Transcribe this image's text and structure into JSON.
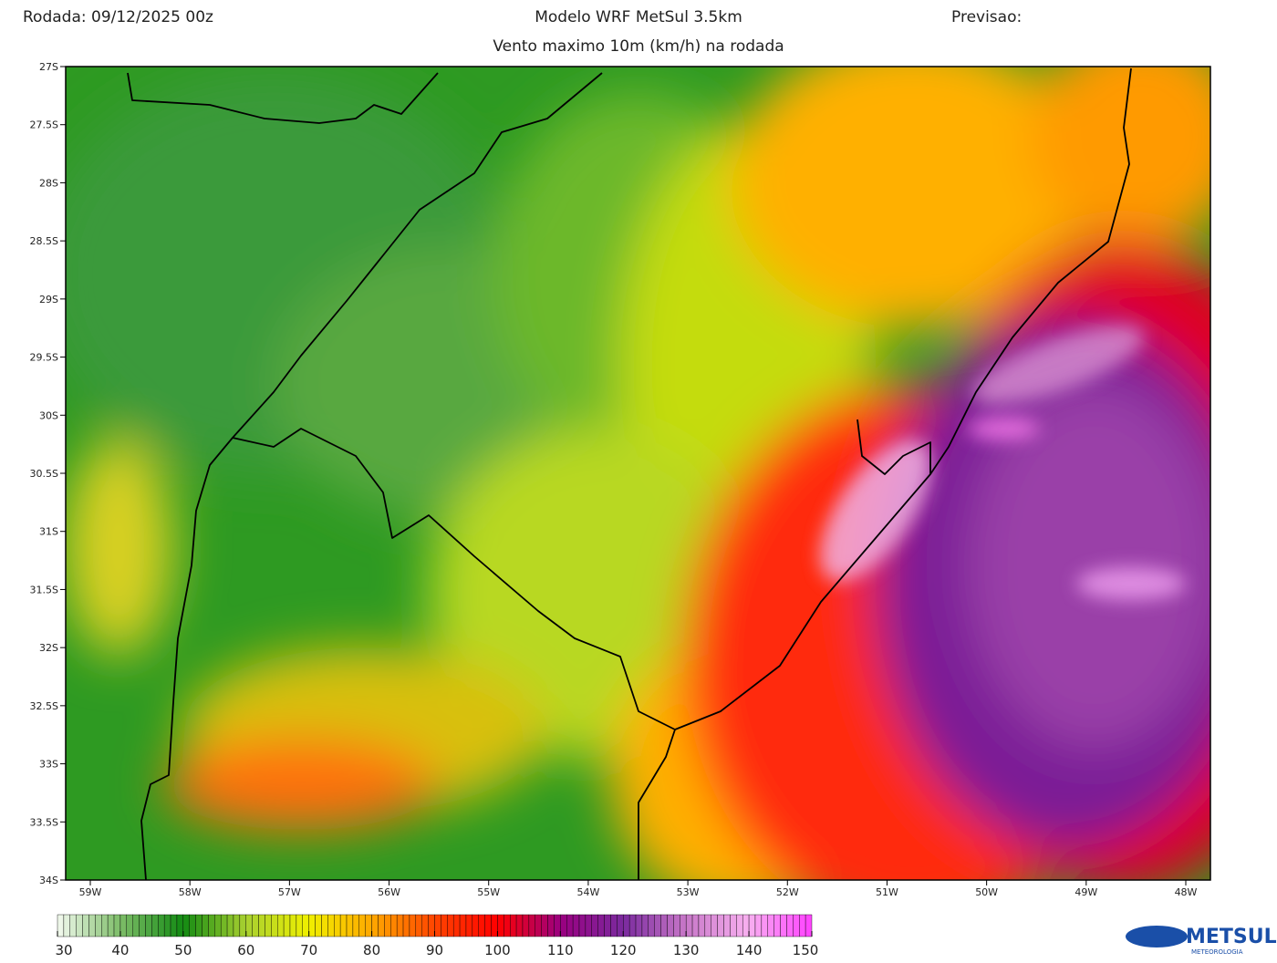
{
  "header": {
    "run": "Rodada: 09/12/2025 00z",
    "model": "Modelo WRF MetSul 3.5km",
    "forecast": "Previsao:",
    "subtitle": "Vento maximo 10m (km/h) na rodada"
  },
  "map": {
    "lat_ticks": [
      {
        "value": -27,
        "label": "27S"
      },
      {
        "value": -27.5,
        "label": "27.5S"
      },
      {
        "value": -28,
        "label": "28S"
      },
      {
        "value": -28.5,
        "label": "28.5S"
      },
      {
        "value": -29,
        "label": "29S"
      },
      {
        "value": -29.5,
        "label": "29.5S"
      },
      {
        "value": -30,
        "label": "30S"
      },
      {
        "value": -30.5,
        "label": "30.5S"
      },
      {
        "value": -31,
        "label": "31S"
      },
      {
        "value": -31.5,
        "label": "31.5S"
      },
      {
        "value": -32,
        "label": "32S"
      },
      {
        "value": -32.5,
        "label": "32.5S"
      },
      {
        "value": -33,
        "label": "33S"
      },
      {
        "value": -33.5,
        "label": "33.5S"
      },
      {
        "value": -34,
        "label": "34S"
      }
    ],
    "lon_ticks": [
      {
        "value": -59,
        "label": "59W"
      },
      {
        "value": -58,
        "label": "58W"
      },
      {
        "value": -57,
        "label": "57W"
      },
      {
        "value": -56,
        "label": "56W"
      },
      {
        "value": -55,
        "label": "55W"
      },
      {
        "value": -54,
        "label": "54W"
      },
      {
        "value": -53,
        "label": "53W"
      },
      {
        "value": -52,
        "label": "52W"
      },
      {
        "value": -51,
        "label": "51W"
      },
      {
        "value": -50,
        "label": "50W"
      },
      {
        "value": -49,
        "label": "49W"
      },
      {
        "value": -48,
        "label": "48W"
      }
    ]
  },
  "colorbar": {
    "range": [
      30,
      150
    ],
    "ticks": [
      30,
      40,
      50,
      60,
      70,
      80,
      90,
      100,
      110,
      120,
      130,
      140,
      150
    ],
    "colors": [
      "#f4faf0",
      "#7dbd68",
      "#138a13",
      "#a8d030",
      "#f0f000",
      "#ffa800",
      "#ff4400",
      "#ff0000",
      "#9a0080",
      "#7a2a9e",
      "#c878c8",
      "#f8b0f0",
      "#ff40ff"
    ]
  },
  "logo": {
    "name": "METSUL",
    "tagline": "METEOROLOGIA"
  }
}
